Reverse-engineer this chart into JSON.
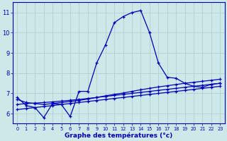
{
  "xlabel": "Graphe des températures (°c)",
  "bg_color": "#cce8e8",
  "grid_color": "#aacccc",
  "line_color": "#0000bb",
  "ylim": [
    5.5,
    11.5
  ],
  "xlim": [
    -0.5,
    23.5
  ],
  "yticks": [
    6,
    7,
    8,
    9,
    10,
    11
  ],
  "xticks": [
    0,
    1,
    2,
    3,
    4,
    5,
    6,
    7,
    8,
    9,
    10,
    11,
    12,
    13,
    14,
    15,
    16,
    17,
    18,
    19,
    20,
    21,
    22,
    23
  ],
  "main_temps": [
    6.8,
    6.4,
    6.3,
    5.8,
    6.5,
    6.45,
    5.85,
    7.1,
    7.1,
    8.5,
    9.4,
    10.5,
    10.8,
    11.0,
    11.1,
    10.0,
    8.5,
    7.8,
    7.75,
    7.5,
    7.35,
    7.3,
    7.45,
    7.5
  ],
  "line2_temps": [
    6.7,
    6.55,
    6.5,
    6.45,
    6.5,
    6.55,
    6.6,
    6.65,
    6.72,
    6.8,
    6.88,
    6.95,
    7.02,
    7.1,
    7.18,
    7.25,
    7.32,
    7.38,
    7.44,
    7.5,
    7.55,
    7.6,
    7.65,
    7.7
  ],
  "line3_temps": [
    6.45,
    6.5,
    6.52,
    6.55,
    6.58,
    6.62,
    6.66,
    6.7,
    6.75,
    6.8,
    6.85,
    6.9,
    6.95,
    7.0,
    7.05,
    7.1,
    7.15,
    7.2,
    7.25,
    7.3,
    7.35,
    7.4,
    7.45,
    7.5
  ],
  "line4_temps": [
    6.2,
    6.25,
    6.3,
    6.35,
    6.4,
    6.45,
    6.5,
    6.55,
    6.6,
    6.65,
    6.7,
    6.75,
    6.8,
    6.85,
    6.9,
    6.95,
    7.0,
    7.05,
    7.1,
    7.15,
    7.2,
    7.25,
    7.3,
    7.35
  ]
}
